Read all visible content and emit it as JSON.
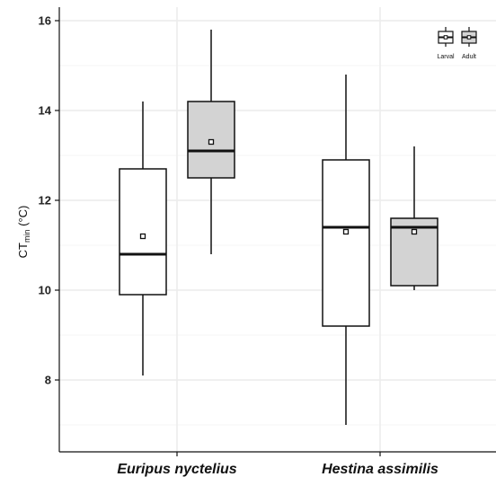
{
  "chart_data": {
    "type": "box",
    "ylabel": {
      "main": "CT",
      "sub": "min",
      "unit": " (°C)"
    },
    "ylim": [
      6.4,
      16.3
    ],
    "yticks": [
      8,
      10,
      12,
      14,
      16
    ],
    "grid": true,
    "legend_position": "top-right",
    "categories": [
      "Euripus nyctelius",
      "Hestina assimilis"
    ],
    "series": [
      {
        "name": "Larval",
        "color": "#ffffff"
      },
      {
        "name": "Adult",
        "color": "#d3d3d3"
      }
    ],
    "boxes": [
      {
        "category": "Euripus nyctelius",
        "series": "Larval",
        "min": 8.1,
        "q1": 9.9,
        "median": 10.8,
        "q3": 12.7,
        "max": 14.2,
        "mean": 11.2
      },
      {
        "category": "Euripus nyctelius",
        "series": "Adult",
        "min": 10.8,
        "q1": 12.5,
        "median": 13.1,
        "q3": 14.2,
        "max": 15.8,
        "mean": 13.3
      },
      {
        "category": "Hestina assimilis",
        "series": "Larval",
        "min": 7.0,
        "q1": 9.2,
        "median": 11.4,
        "q3": 12.9,
        "max": 14.8,
        "mean": 11.3
      },
      {
        "category": "Hestina assimilis",
        "series": "Adult",
        "min": 10.0,
        "q1": 10.1,
        "median": 11.4,
        "q3": 11.6,
        "max": 13.2,
        "mean": 11.3
      }
    ]
  }
}
